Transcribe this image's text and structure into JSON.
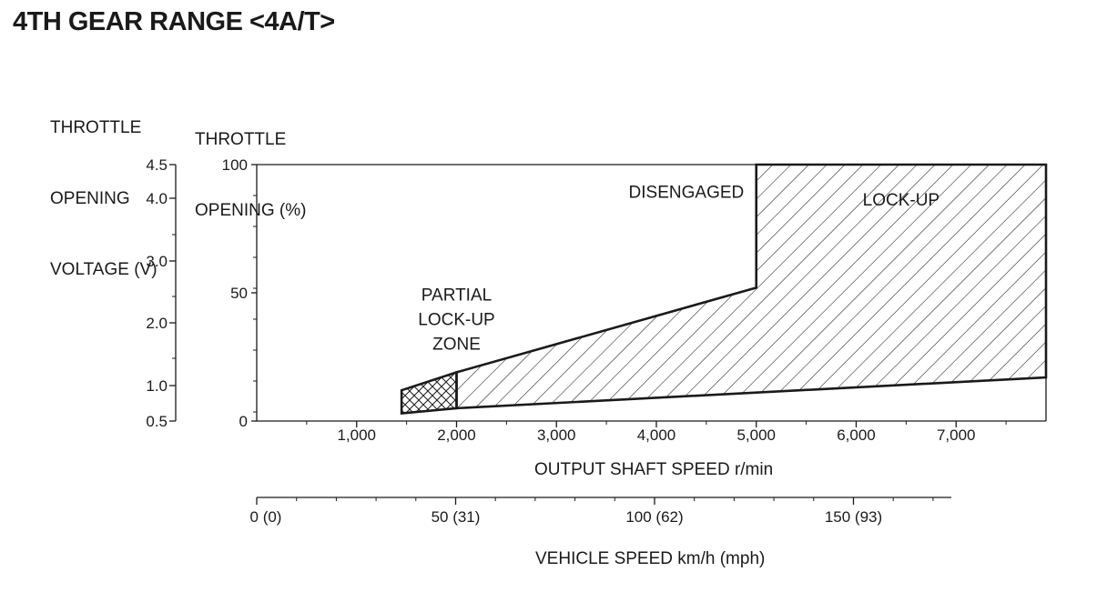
{
  "title": "4TH GEAR RANGE <4A/T>",
  "voltage_axis": {
    "label_lines": [
      "THROTTLE",
      "OPENING",
      "VOLTAGE (V)"
    ],
    "ticks": [
      "4.5",
      "4.0",
      "3.0",
      "2.0",
      "1.0",
      "0.5"
    ]
  },
  "percent_axis": {
    "label_lines": [
      "THROTTLE",
      "OPENING (%)"
    ],
    "ticks": [
      "100",
      "50",
      "0"
    ]
  },
  "vehicle_axis": {
    "label": "VEHICLE SPEED km/h (mph)",
    "ticks": [
      "0 (0)",
      "50 (31)",
      "100 (62)",
      "150 (93)"
    ]
  },
  "chart_data": {
    "type": "area",
    "title": "4TH GEAR RANGE <4A/T>",
    "xlabel": "OUTPUT SHAFT SPEED r/min",
    "ylabel": "THROTTLE OPENING (%)",
    "xlim": [
      0,
      7900
    ],
    "ylim": [
      0,
      100
    ],
    "x_ticks": [
      "1,000",
      "2,000",
      "3,000",
      "4,000",
      "5,000",
      "6,000",
      "7,000"
    ],
    "x_tick_values": [
      1000,
      2000,
      3000,
      4000,
      5000,
      6000,
      7000
    ],
    "y_ticks": [
      0,
      50,
      100
    ],
    "regions": [
      {
        "name": "DISENGAGED",
        "label": "DISENGAGED",
        "fill": "none",
        "label_at": [
          4300,
          87
        ]
      },
      {
        "name": "PARTIAL LOCK-UP ZONE",
        "label": "PARTIAL\nLOCK-UP\nZONE",
        "fill": "crosshatch",
        "polygon": [
          [
            1450,
            3
          ],
          [
            1450,
            12
          ],
          [
            2000,
            19
          ],
          [
            2000,
            5
          ]
        ],
        "label_at": [
          2000,
          47
        ]
      },
      {
        "name": "LOCK-UP",
        "label": "LOCK-UP",
        "fill": "hatch",
        "polygon": [
          [
            2000,
            5
          ],
          [
            2000,
            19
          ],
          [
            5000,
            52
          ],
          [
            5000,
            100
          ],
          [
            7900,
            100
          ],
          [
            7900,
            17
          ]
        ],
        "label_at": [
          6450,
          84
        ]
      }
    ],
    "boundary": [
      [
        1450,
        12
      ],
      [
        2000,
        19
      ],
      [
        5000,
        52
      ],
      [
        5000,
        100
      ]
    ],
    "grid": false,
    "legend": "none"
  }
}
